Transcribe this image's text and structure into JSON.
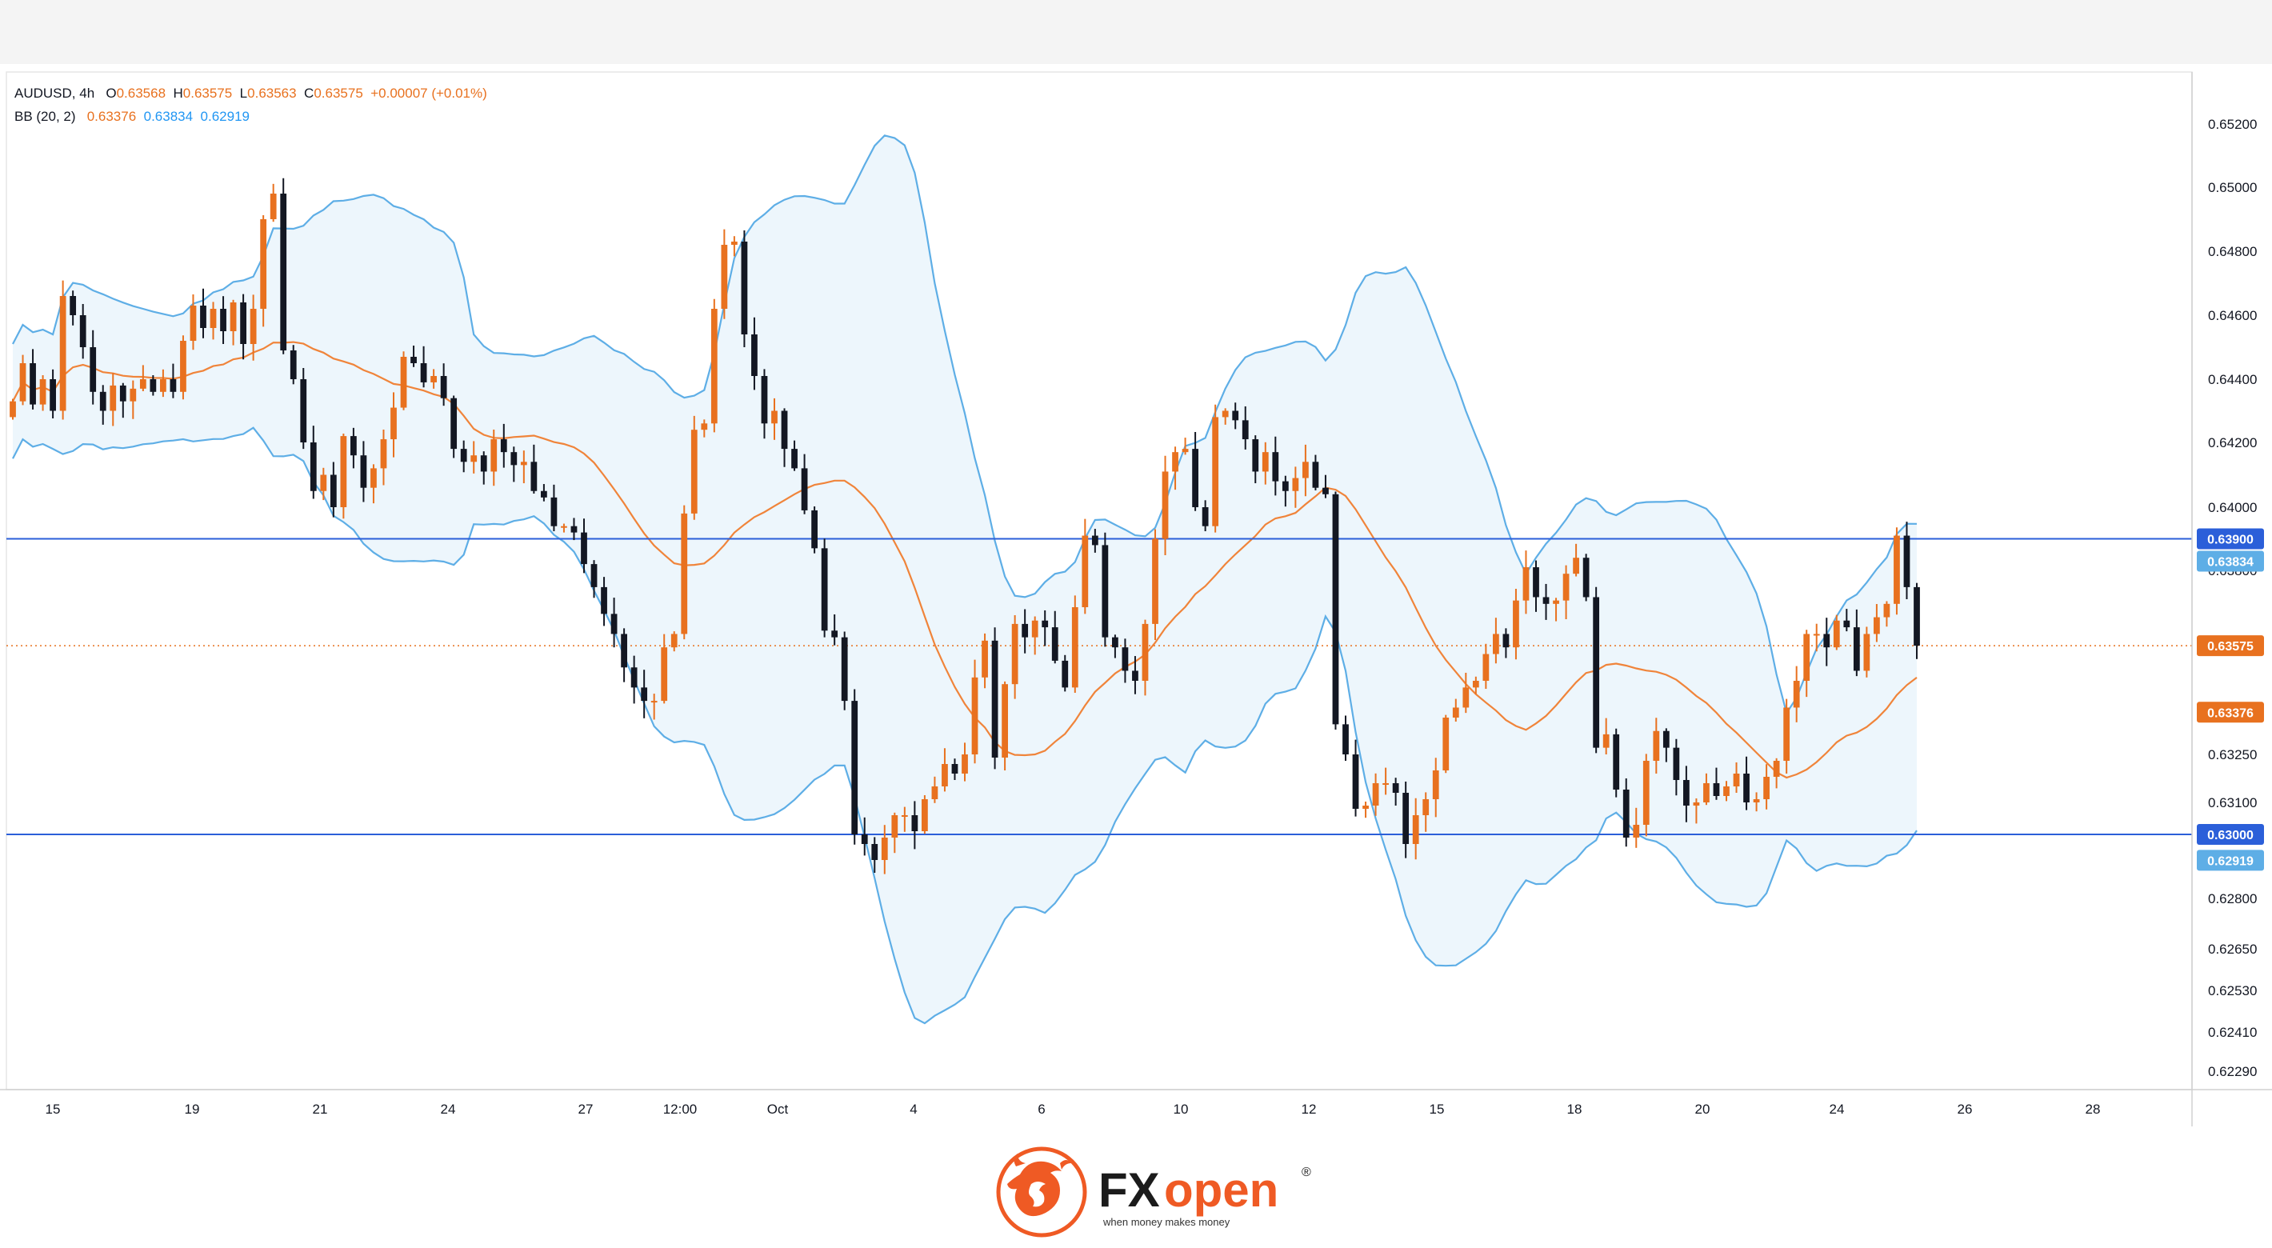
{
  "legend": {
    "symbol": "AUDUSD",
    "interval": "4h",
    "o_label": "O",
    "o_value": "0.63568",
    "h_label": "H",
    "h_value": "0.63575",
    "l_label": "L",
    "l_value": "0.63563",
    "c_label": "C",
    "c_value": "0.63575",
    "change": "+0.00007 (+0.01%)",
    "bb_label": "BB (20, 2)",
    "bb_basis": "0.63376",
    "bb_upper": "0.63834",
    "bb_lower": "0.62919"
  },
  "brand": {
    "name_fx": "FX",
    "name_open": "open",
    "registered": "®",
    "tagline": "when money makes money"
  },
  "colors": {
    "up": "#e8711f",
    "down": "#131722",
    "band": "#5eaee6",
    "band_fill": "#eaf4fc",
    "basis": "#f0843a",
    "hline": "#2b5fd9",
    "last_price": "#e8711f"
  },
  "chart_data": {
    "type": "candlestick",
    "symbol": "AUDUSD",
    "interval": "4h",
    "y_ticks": [
      "0.65200",
      "0.65000",
      "0.64800",
      "0.64600",
      "0.64400",
      "0.64200",
      "0.64000",
      "0.63800",
      "0.63250",
      "0.63100",
      "0.62800",
      "0.62650",
      "0.62530",
      "0.62410",
      "0.62290"
    ],
    "x_ticks": [
      "15",
      "19",
      "21",
      "24",
      "27",
      "12:00",
      "Oct",
      "4",
      "6",
      "10",
      "12",
      "15",
      "18",
      "20",
      "24",
      "26",
      "28"
    ],
    "horizontal_lines": [
      0.639,
      0.63
    ],
    "price_labels": [
      {
        "value": "0.63900",
        "kind": "line"
      },
      {
        "value": "0.63834",
        "kind": "upper"
      },
      {
        "value": "0.63575",
        "kind": "last"
      },
      {
        "value": "0.63376",
        "kind": "basis"
      },
      {
        "value": "0.63000",
        "kind": "line"
      },
      {
        "value": "0.62919",
        "kind": "lower"
      }
    ],
    "closes": [
      0.6433,
      0.6445,
      0.6432,
      0.644,
      0.643,
      0.6466,
      0.646,
      0.645,
      0.6436,
      0.643,
      0.6438,
      0.6433,
      0.6437,
      0.644,
      0.6436,
      0.644,
      0.6436,
      0.6452,
      0.6463,
      0.6456,
      0.6462,
      0.6455,
      0.6464,
      0.6451,
      0.6462,
      0.649,
      0.6498,
      0.6449,
      0.644,
      0.642,
      0.6405,
      0.641,
      0.64,
      0.6422,
      0.6416,
      0.6406,
      0.6412,
      0.6421,
      0.6431,
      0.6447,
      0.6445,
      0.6439,
      0.6441,
      0.6434,
      0.6418,
      0.6414,
      0.6416,
      0.6411,
      0.6421,
      0.6417,
      0.6413,
      0.6414,
      0.6405,
      0.6403,
      0.6394,
      0.6394,
      0.6392,
      0.6382,
      0.6375,
      0.6367,
      0.6361,
      0.6351,
      0.6345,
      0.6341,
      0.6341,
      0.6357,
      0.6361,
      0.6398,
      0.6424,
      0.6426,
      0.6462,
      0.6482,
      0.6483,
      0.6454,
      0.6441,
      0.6426,
      0.643,
      0.6418,
      0.6412,
      0.6399,
      0.6387,
      0.6362,
      0.636,
      0.6341,
      0.63,
      0.6297,
      0.6292,
      0.6299,
      0.6306,
      0.6306,
      0.6301,
      0.6311,
      0.6315,
      0.6322,
      0.6319,
      0.6325,
      0.6348,
      0.6359,
      0.6324,
      0.6346,
      0.6364,
      0.636,
      0.6365,
      0.6363,
      0.6353,
      0.6345,
      0.6369,
      0.6391,
      0.6388,
      0.636,
      0.6357,
      0.635,
      0.6347,
      0.6364,
      0.639,
      0.6411,
      0.6417,
      0.6418,
      0.64,
      0.6394,
      0.6428,
      0.643,
      0.6427,
      0.6421,
      0.6411,
      0.6417,
      0.6408,
      0.6405,
      0.6409,
      0.6414,
      0.6406,
      0.6404,
      0.6334,
      0.6325,
      0.6308,
      0.6309,
      0.6316,
      0.6316,
      0.6313,
      0.6297,
      0.6306,
      0.6311,
      0.632,
      0.6336,
      0.6339,
      0.6345,
      0.6347,
      0.6355,
      0.6361,
      0.6357,
      0.6371,
      0.6381,
      0.6372,
      0.637,
      0.6371,
      0.6379,
      0.6384,
      0.6372,
      0.6327,
      0.6331,
      0.6314,
      0.6299,
      0.6303,
      0.6323,
      0.6332,
      0.6327,
      0.6317,
      0.6309,
      0.631,
      0.6316,
      0.6312,
      0.6315,
      0.6319,
      0.631,
      0.6311,
      0.6318,
      0.6323,
      0.6339,
      0.6347,
      0.6361,
      0.6361,
      0.6357,
      0.6365,
      0.6363,
      0.635,
      0.6361,
      0.6366,
      0.637,
      0.6391,
      0.6375,
      0.63575
    ],
    "bb_period": 20,
    "bb_mult": 2
  }
}
